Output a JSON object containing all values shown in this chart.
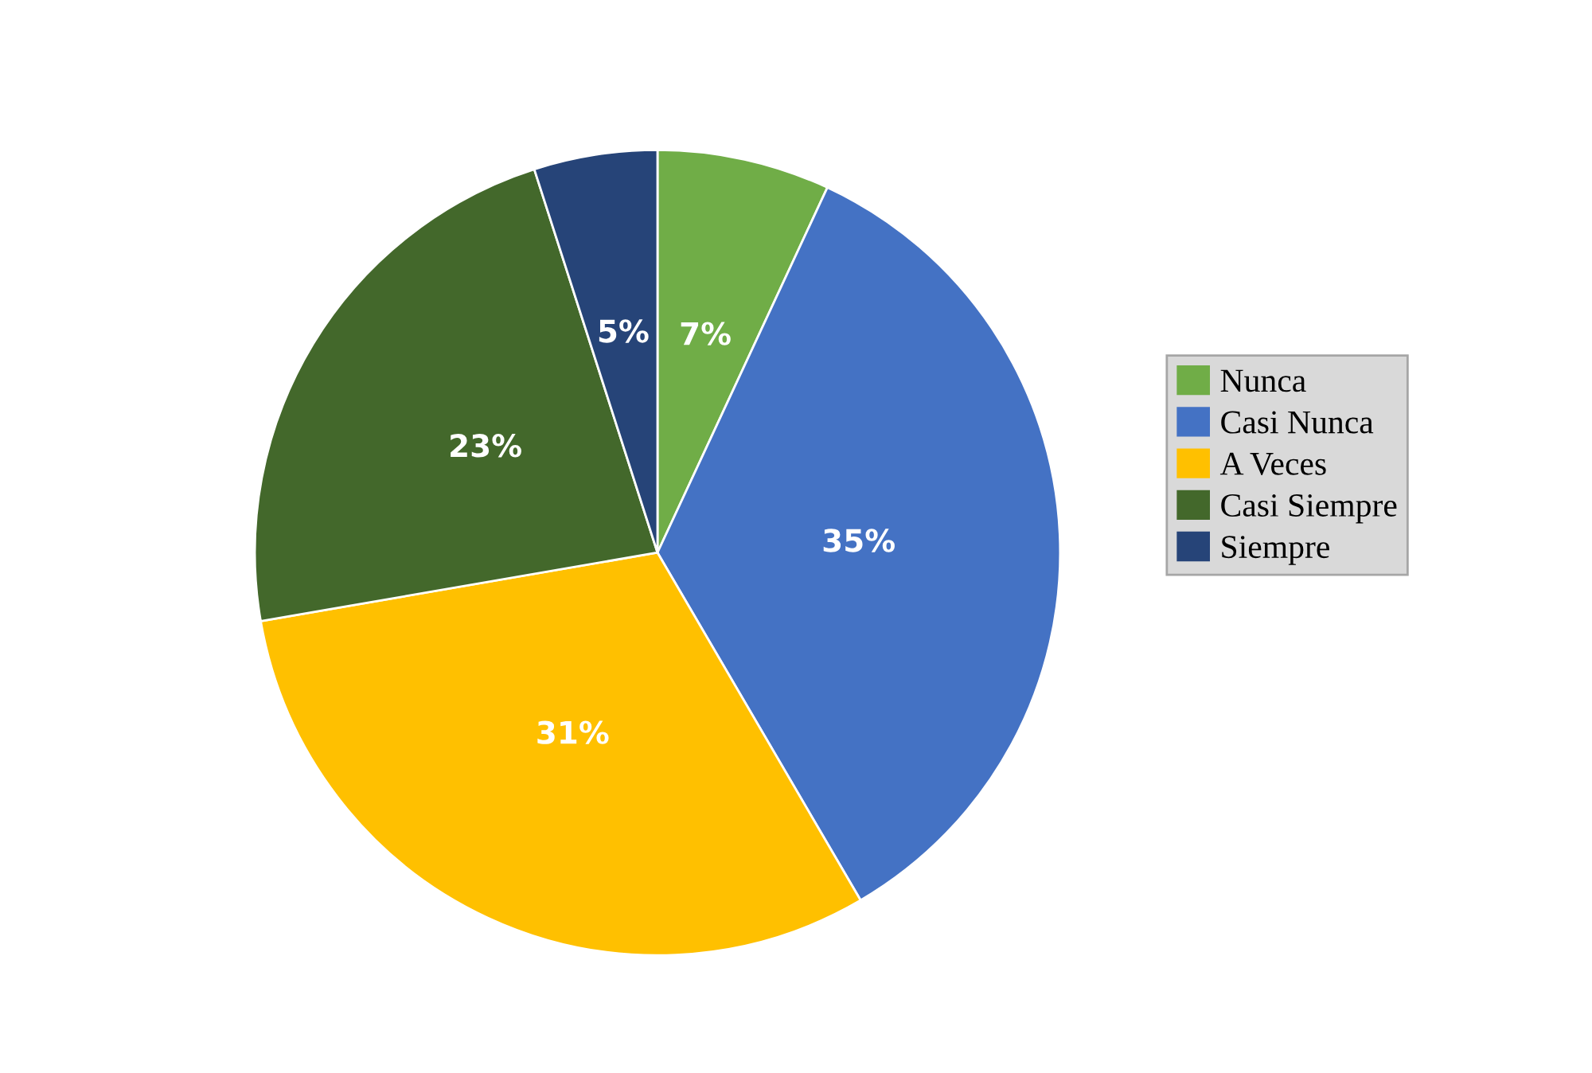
{
  "chart_data": {
    "type": "pie",
    "categories": [
      "Nunca",
      "Casi Nunca",
      "A Veces",
      "Casi Siempre",
      "Siempre"
    ],
    "values": [
      7,
      35,
      31,
      23,
      5
    ],
    "colors": [
      "#70ad47",
      "#4472c4",
      "#ffc000",
      "#43682b",
      "#264478"
    ],
    "value_labels": [
      "7%",
      "35%",
      "31%",
      "23%",
      "5%"
    ],
    "legend": "right"
  }
}
